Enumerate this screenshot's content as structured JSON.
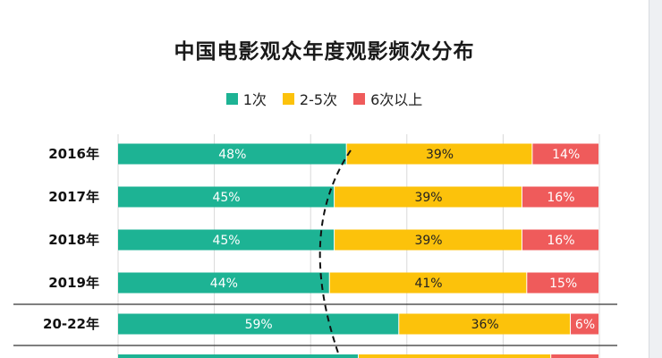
{
  "chart_data": {
    "type": "bar",
    "orientation": "horizontal",
    "stacked": true,
    "percent": true,
    "title": "中国电影观众年度观影频次分布",
    "categories": [
      "2016年",
      "2017年",
      "2018年",
      "2019年",
      "20-22年"
    ],
    "series": [
      {
        "name": "1次",
        "color": "#1db394",
        "values": [
          48,
          45,
          45,
          44,
          59
        ],
        "labels": [
          "48%",
          "45%",
          "45%",
          "44%",
          "59%"
        ]
      },
      {
        "name": "2-5次",
        "color": "#fcc20b",
        "values": [
          39,
          39,
          39,
          41,
          36
        ],
        "labels": [
          "39%",
          "39%",
          "39%",
          "41%",
          "36%"
        ]
      },
      {
        "name": "6次以上",
        "color": "#ef5b5b",
        "values": [
          14,
          16,
          16,
          15,
          6
        ],
        "labels": [
          "14%",
          "16%",
          "16%",
          "15%",
          "6%"
        ]
      }
    ],
    "xlim": [
      0,
      100
    ],
    "grid": true,
    "legend_position": "top-center"
  }
}
